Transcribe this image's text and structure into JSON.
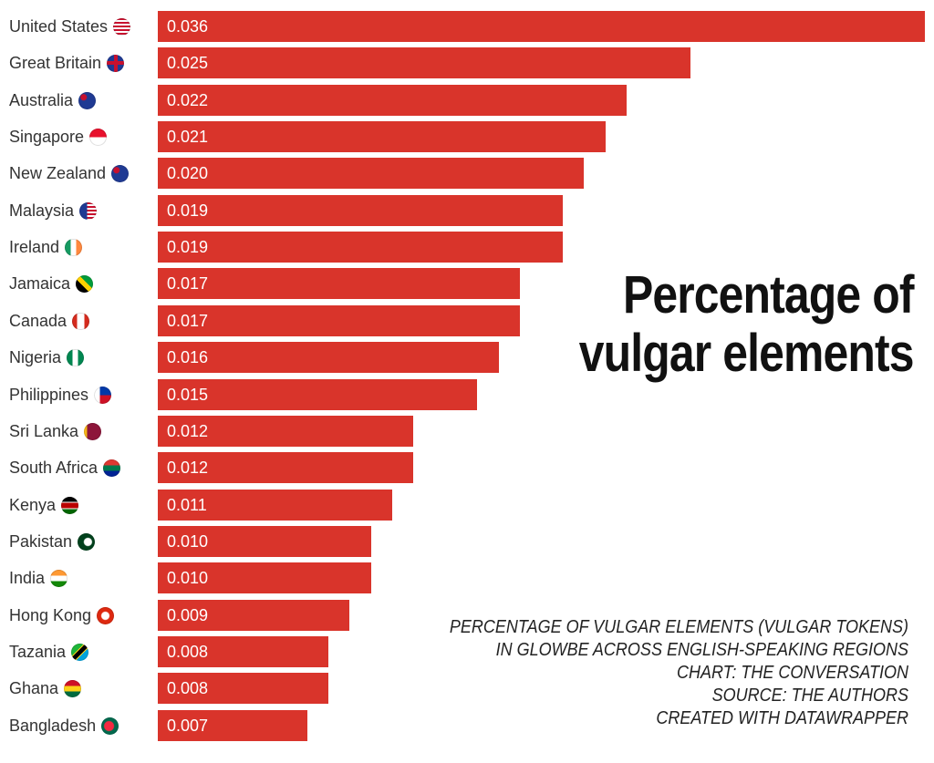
{
  "title": {
    "line1": "Percentage of",
    "line2": "vulgar elements"
  },
  "notes": [
    "PERCENTAGE OF VULGAR ELEMENTS (VULGAR TOKENS)",
    "IN GLOWBE ACROSS ENGLISH-SPEAKING REGIONS",
    "CHART: THE CONVERSATION",
    "SOURCE: THE AUTHORS",
    "CREATED WITH DATAWRAPPER"
  ],
  "colors": {
    "bar": "#d9342b",
    "bar_text": "#ffffff",
    "label": "#333333",
    "title": "#111111"
  },
  "chart_data": {
    "type": "bar",
    "orientation": "horizontal",
    "categories": [
      "United States",
      "Great Britain",
      "Australia",
      "Singapore",
      "New Zealand",
      "Malaysia",
      "Ireland",
      "Jamaica",
      "Canada",
      "Nigeria",
      "Philippines",
      "Sri Lanka",
      "South Africa",
      "Kenya",
      "Pakistan",
      "India",
      "Hong Kong",
      "Tazania",
      "Ghana",
      "Bangladesh"
    ],
    "values": [
      0.036,
      0.025,
      0.022,
      0.021,
      0.02,
      0.019,
      0.019,
      0.017,
      0.017,
      0.016,
      0.015,
      0.012,
      0.012,
      0.011,
      0.01,
      0.01,
      0.009,
      0.008,
      0.008,
      0.007
    ],
    "value_labels": [
      "0.036",
      "0.025",
      "0.022",
      "0.021",
      "0.020",
      "0.019",
      "0.019",
      "0.017",
      "0.017",
      "0.016",
      "0.015",
      "0.012",
      "0.012",
      "0.011",
      "0.010",
      "0.010",
      "0.009",
      "0.008",
      "0.008",
      "0.007"
    ],
    "flag_icons": [
      "us-flag-icon",
      "gb-flag-icon",
      "au-flag-icon",
      "sg-flag-icon",
      "nz-flag-icon",
      "my-flag-icon",
      "ie-flag-icon",
      "jm-flag-icon",
      "ca-flag-icon",
      "ng-flag-icon",
      "ph-flag-icon",
      "lk-flag-icon",
      "za-flag-icon",
      "ke-flag-icon",
      "pk-flag-icon",
      "in-flag-icon",
      "hk-flag-icon",
      "tz-flag-icon",
      "gh-flag-icon",
      "bd-flag-icon"
    ],
    "xlim": [
      0,
      0.036
    ],
    "grid": false,
    "legend": "none"
  }
}
